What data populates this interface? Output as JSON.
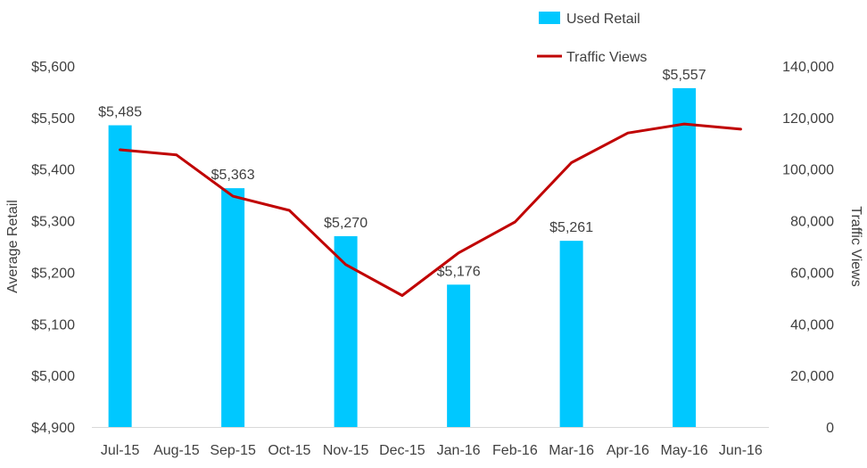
{
  "chart_data": {
    "type": "bar+line",
    "categories": [
      "Jul-15",
      "Aug-15",
      "Sep-15",
      "Oct-15",
      "Nov-15",
      "Dec-15",
      "Jan-16",
      "Feb-16",
      "Mar-16",
      "Apr-16",
      "May-16",
      "Jun-16"
    ],
    "series": [
      {
        "name": "Used Retail",
        "type": "bar",
        "axis": "left",
        "color": "#00c8ff",
        "values": [
          5485,
          null,
          5363,
          null,
          5270,
          null,
          5176,
          null,
          5261,
          null,
          5557,
          null
        ],
        "labels": [
          "$5,485",
          null,
          "$5,363",
          null,
          "$5,270",
          null,
          "$5,176",
          null,
          "$5,261",
          null,
          "$5,557",
          null
        ]
      },
      {
        "name": "Traffic Views",
        "type": "line",
        "axis": "right",
        "color": "#c00000",
        "values": [
          107500,
          105500,
          89500,
          84000,
          63000,
          51000,
          67500,
          79500,
          102500,
          114000,
          117500,
          115500
        ]
      }
    ],
    "y_left": {
      "label": "Average Retail",
      "min": 4900,
      "max": 5600,
      "ticks": [
        4900,
        5000,
        5100,
        5200,
        5300,
        5400,
        5500,
        5600
      ],
      "tick_labels": [
        "$4,900",
        "$5,000",
        "$5,100",
        "$5,200",
        "$5,300",
        "$5,400",
        "$5,500",
        "$5,600"
      ]
    },
    "y_right": {
      "label": "Traffic Views",
      "min": 0,
      "max": 140000,
      "ticks": [
        0,
        20000,
        40000,
        60000,
        80000,
        100000,
        120000,
        140000
      ],
      "tick_labels": [
        "0",
        "20,000",
        "40,000",
        "60,000",
        "80,000",
        "100,000",
        "120,000",
        "140,000"
      ]
    },
    "legend": {
      "placement": "top-right",
      "items": [
        {
          "label": "Used Retail",
          "kind": "bar",
          "color": "#00c8ff"
        },
        {
          "label": "Traffic Views",
          "kind": "line",
          "color": "#c00000"
        }
      ]
    },
    "grid": false
  }
}
